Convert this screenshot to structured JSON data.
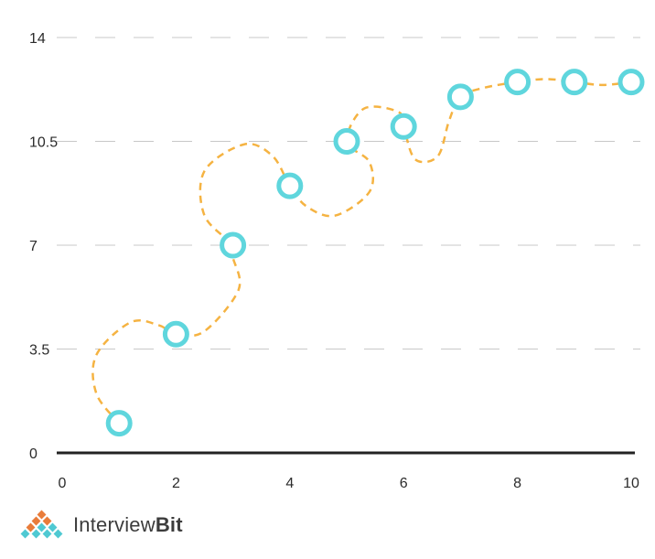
{
  "chart_data": {
    "type": "scatter",
    "title": "",
    "xlabel": "",
    "ylabel": "",
    "xlim": [
      0,
      10
    ],
    "ylim": [
      0,
      14
    ],
    "x_ticks": [
      0,
      2,
      4,
      6,
      8,
      10
    ],
    "x_tick_labels": [
      "0",
      "2",
      "4",
      "6",
      "8",
      "10"
    ],
    "y_ticks": [
      0,
      3.5,
      7,
      10.5,
      14
    ],
    "y_tick_labels": [
      "0",
      "3.5",
      "7",
      "10.5",
      "14"
    ],
    "grid": "horizontal-dashed",
    "points": [
      {
        "x": 1,
        "y": 1.0
      },
      {
        "x": 2,
        "y": 4.0
      },
      {
        "x": 3,
        "y": 7.0
      },
      {
        "x": 4,
        "y": 9.0
      },
      {
        "x": 5,
        "y": 10.5
      },
      {
        "x": 6,
        "y": 11.0
      },
      {
        "x": 7,
        "y": 12.0
      },
      {
        "x": 8,
        "y": 12.5
      },
      {
        "x": 9,
        "y": 12.5
      },
      {
        "x": 10,
        "y": 12.5
      }
    ],
    "trend_line": {
      "style": "dashed-curve",
      "path": [
        [
          1,
          1.0
        ],
        [
          0.6,
          2.0
        ],
        [
          0.6,
          3.3
        ],
        [
          1.2,
          4.4
        ],
        [
          1.7,
          4.3
        ],
        [
          2,
          4.0
        ],
        [
          2.5,
          4.1
        ],
        [
          3.1,
          5.5
        ],
        [
          3.0,
          6.6
        ],
        [
          3,
          7.0
        ],
        [
          2.5,
          8.0
        ],
        [
          2.5,
          9.5
        ],
        [
          3.2,
          10.4
        ],
        [
          3.7,
          10.0
        ],
        [
          4,
          9.0
        ],
        [
          4.3,
          8.3
        ],
        [
          4.8,
          8.0
        ],
        [
          5.4,
          8.8
        ],
        [
          5.4,
          9.8
        ],
        [
          5,
          10.5
        ],
        [
          5.3,
          11.6
        ],
        [
          5.9,
          11.5
        ],
        [
          6,
          11.0
        ],
        [
          6.2,
          9.9
        ],
        [
          6.6,
          10.0
        ],
        [
          6.8,
          11.2
        ],
        [
          7,
          12.0
        ],
        [
          7.4,
          12.3
        ],
        [
          8,
          12.5
        ],
        [
          8.5,
          12.6
        ],
        [
          9,
          12.5
        ],
        [
          9.5,
          12.4
        ],
        [
          10,
          12.5
        ]
      ]
    },
    "colors": {
      "marker_stroke": "#5fd6dd",
      "marker_fill": "#ffffff",
      "trend_line": "#f5b342",
      "grid": "#c8c8c8",
      "axis": "#222222"
    }
  },
  "brand": {
    "name_part1": "Interview",
    "name_part2": "Bit",
    "icon": "diamond-lattice-logo"
  }
}
